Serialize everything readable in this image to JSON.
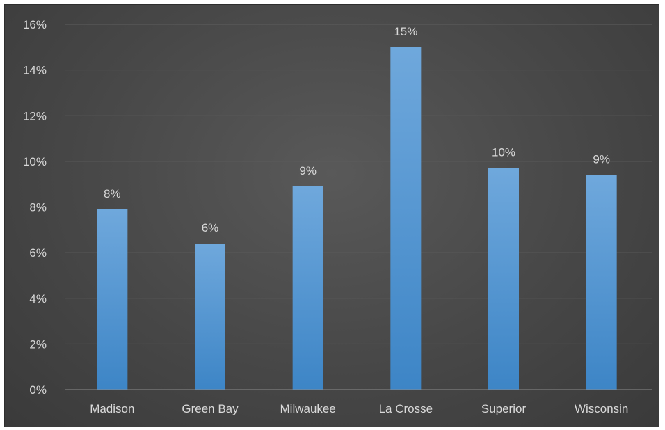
{
  "chart_data": {
    "type": "bar",
    "categories": [
      "Madison",
      "Green Bay",
      "Milwaukee",
      "La Crosse",
      "Superior",
      "Wisconsin"
    ],
    "values": [
      7.9,
      6.4,
      8.9,
      15.0,
      9.7,
      9.4
    ],
    "data_labels": [
      "8%",
      "6%",
      "9%",
      "15%",
      "10%",
      "9%"
    ],
    "ylim": [
      0,
      16
    ],
    "y_ticks": [
      0,
      2,
      4,
      6,
      8,
      10,
      12,
      14,
      16
    ],
    "y_tick_labels": [
      "0%",
      "2%",
      "4%",
      "6%",
      "8%",
      "10%",
      "12%",
      "14%",
      "16%"
    ],
    "title": "",
    "xlabel": "",
    "ylabel": "",
    "grid": true,
    "legend": "none",
    "colors": {
      "bar_top": "#6fa8dc",
      "bar_bottom": "#3d85c6",
      "background": "#474747",
      "gridline": "#5e5e5e",
      "text": "#d9d9d9"
    }
  }
}
